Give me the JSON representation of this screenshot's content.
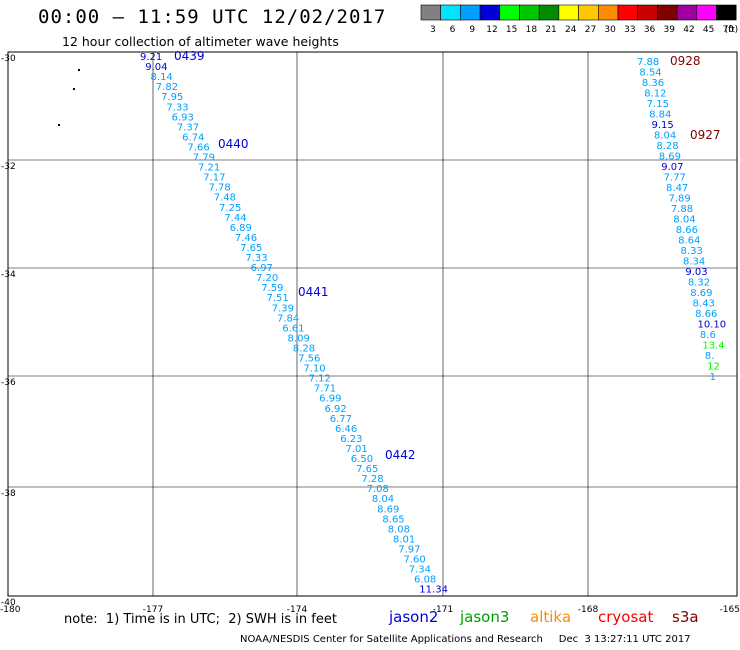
{
  "header": {
    "title": "00:00 – 11:59 UTC 12/02/2017",
    "subtitle": "12 hour collection of altimeter wave heights"
  },
  "colorbar": {
    "unit_label": "(ft)",
    "bins": [
      {
        "label": "3",
        "color": "#808080"
      },
      {
        "label": "6",
        "color": "#00e5ff"
      },
      {
        "label": "9",
        "color": "#00a0ff"
      },
      {
        "label": "12",
        "color": "#0000d8"
      },
      {
        "label": "15",
        "color": "#00ff00"
      },
      {
        "label": "18",
        "color": "#00c800"
      },
      {
        "label": "21",
        "color": "#008c00"
      },
      {
        "label": "24",
        "color": "#ffff00"
      },
      {
        "label": "27",
        "color": "#ffc800"
      },
      {
        "label": "30",
        "color": "#ff8c00"
      },
      {
        "label": "33",
        "color": "#ff0000"
      },
      {
        "label": "36",
        "color": "#c80000"
      },
      {
        "label": "39",
        "color": "#800000"
      },
      {
        "label": "42",
        "color": "#a000a0"
      },
      {
        "label": "45",
        "color": "#ff00ff"
      },
      {
        "label": "70",
        "color": "#000000"
      }
    ]
  },
  "axes": {
    "lon_labels": [
      "-180",
      "-177",
      "-174",
      "-171",
      "-168",
      "-165"
    ],
    "lat_labels": [
      "-30",
      "-32",
      "-34",
      "-36",
      "-38",
      "-40"
    ]
  },
  "tracks": [
    {
      "pass_labels": [
        {
          "text": "0439",
          "color": "#0000d8"
        },
        {
          "text": "0440",
          "color": "#0000d8"
        },
        {
          "text": "0441",
          "color": "#0000d8"
        },
        {
          "text": "0442",
          "color": "#0000d8"
        }
      ],
      "values": [
        {
          "text": "9.21",
          "color": "#0000d8"
        },
        {
          "text": "9.04",
          "color": "#0000d8"
        },
        {
          "text": "8.14",
          "color": "#00a0ff"
        },
        {
          "text": "7.82",
          "color": "#00a0ff"
        },
        {
          "text": "7.95",
          "color": "#00a0ff"
        },
        {
          "text": "7.33",
          "color": "#00a0ff"
        },
        {
          "text": "6.93",
          "color": "#00a0ff"
        },
        {
          "text": "7.37",
          "color": "#00a0ff"
        },
        {
          "text": "6.74",
          "color": "#00a0ff"
        },
        {
          "text": "7.66",
          "color": "#00a0ff"
        },
        {
          "text": "7.79",
          "color": "#00a0ff"
        },
        {
          "text": "7.21",
          "color": "#00a0ff"
        },
        {
          "text": "7.17",
          "color": "#00a0ff"
        },
        {
          "text": "7.78",
          "color": "#00a0ff"
        },
        {
          "text": "7.48",
          "color": "#00a0ff"
        },
        {
          "text": "7.25",
          "color": "#00a0ff"
        },
        {
          "text": "7.44",
          "color": "#00a0ff"
        },
        {
          "text": "6.89",
          "color": "#00a0ff"
        },
        {
          "text": "7.46",
          "color": "#00a0ff"
        },
        {
          "text": "7.65",
          "color": "#00a0ff"
        },
        {
          "text": "7.33",
          "color": "#00a0ff"
        },
        {
          "text": "6.97",
          "color": "#00a0ff"
        },
        {
          "text": "7.20",
          "color": "#00a0ff"
        },
        {
          "text": "7.59",
          "color": "#00a0ff"
        },
        {
          "text": "7.51",
          "color": "#00a0ff"
        },
        {
          "text": "7.39",
          "color": "#00a0ff"
        },
        {
          "text": "7.84",
          "color": "#00a0ff"
        },
        {
          "text": "6.61",
          "color": "#00a0ff"
        },
        {
          "text": "8.09",
          "color": "#00a0ff"
        },
        {
          "text": "8.28",
          "color": "#00a0ff"
        },
        {
          "text": "7.56",
          "color": "#00a0ff"
        },
        {
          "text": "7.10",
          "color": "#00a0ff"
        },
        {
          "text": "7.12",
          "color": "#00a0ff"
        },
        {
          "text": "7.71",
          "color": "#00a0ff"
        },
        {
          "text": "6.99",
          "color": "#00a0ff"
        },
        {
          "text": "6.92",
          "color": "#00a0ff"
        },
        {
          "text": "6.77",
          "color": "#00a0ff"
        },
        {
          "text": "6.46",
          "color": "#00a0ff"
        },
        {
          "text": "6.23",
          "color": "#00a0ff"
        },
        {
          "text": "7.01",
          "color": "#00a0ff"
        },
        {
          "text": "6.50",
          "color": "#00a0ff"
        },
        {
          "text": "7.65",
          "color": "#00a0ff"
        },
        {
          "text": "7.28",
          "color": "#00a0ff"
        },
        {
          "text": "7.08",
          "color": "#00a0ff"
        },
        {
          "text": "8.04",
          "color": "#00a0ff"
        },
        {
          "text": "8.69",
          "color": "#00a0ff"
        },
        {
          "text": "8.65",
          "color": "#00a0ff"
        },
        {
          "text": "8.08",
          "color": "#00a0ff"
        },
        {
          "text": "8.01",
          "color": "#00a0ff"
        },
        {
          "text": "7.97",
          "color": "#00a0ff"
        },
        {
          "text": "7.60",
          "color": "#00a0ff"
        },
        {
          "text": "7.34",
          "color": "#00a0ff"
        },
        {
          "text": "6.08",
          "color": "#00a0ff"
        },
        {
          "text": "11.34",
          "color": "#0000d8"
        }
      ]
    },
    {
      "pass_labels": [
        {
          "text": "0928",
          "color": "#800000"
        },
        {
          "text": "0927",
          "color": "#800000"
        }
      ],
      "values": [
        {
          "text": "7.88",
          "color": "#00a0ff"
        },
        {
          "text": "8.54",
          "color": "#00a0ff"
        },
        {
          "text": "8.36",
          "color": "#00a0ff"
        },
        {
          "text": "8.12",
          "color": "#00a0ff"
        },
        {
          "text": "7.15",
          "color": "#00a0ff"
        },
        {
          "text": "8.84",
          "color": "#00a0ff"
        },
        {
          "text": "9.15",
          "color": "#0000d8"
        },
        {
          "text": "8.04",
          "color": "#00a0ff"
        },
        {
          "text": "8.28",
          "color": "#00a0ff"
        },
        {
          "text": "8.69",
          "color": "#00a0ff"
        },
        {
          "text": "9.07",
          "color": "#0000d8"
        },
        {
          "text": "7.77",
          "color": "#00a0ff"
        },
        {
          "text": "8.47",
          "color": "#00a0ff"
        },
        {
          "text": "7.89",
          "color": "#00a0ff"
        },
        {
          "text": "7.88",
          "color": "#00a0ff"
        },
        {
          "text": "8.04",
          "color": "#00a0ff"
        },
        {
          "text": "8.66",
          "color": "#00a0ff"
        },
        {
          "text": "8.64",
          "color": "#00a0ff"
        },
        {
          "text": "8.33",
          "color": "#00a0ff"
        },
        {
          "text": "8.34",
          "color": "#00a0ff"
        },
        {
          "text": "9.03",
          "color": "#0000d8"
        },
        {
          "text": "8.32",
          "color": "#00a0ff"
        },
        {
          "text": "8.69",
          "color": "#00a0ff"
        },
        {
          "text": "8.43",
          "color": "#00a0ff"
        },
        {
          "text": "8.66",
          "color": "#00a0ff"
        },
        {
          "text": "10.10",
          "color": "#0000d8"
        },
        {
          "text": "8.6",
          "color": "#00a0ff"
        },
        {
          "text": "13.4",
          "color": "#00ff00"
        },
        {
          "text": "8.",
          "color": "#00a0ff"
        },
        {
          "text": "12",
          "color": "#00ff00"
        },
        {
          "text": "1",
          "color": "#00a0ff"
        }
      ]
    }
  ],
  "footer": {
    "note": "note:  1) Time is in UTC;  2) SWH is in feet",
    "missions": [
      {
        "name": "jason2",
        "color": "#0000d8"
      },
      {
        "name": "jason3",
        "color": "#00a000"
      },
      {
        "name": "altika",
        "color": "#ff8c00"
      },
      {
        "name": "cryosat",
        "color": "#ff0000"
      },
      {
        "name": "s3a",
        "color": "#800000"
      }
    ],
    "credit": "NOAA/NESDIS Center for Satellite Applications and Research     Dec  3 13:27:11 UTC 2017"
  }
}
